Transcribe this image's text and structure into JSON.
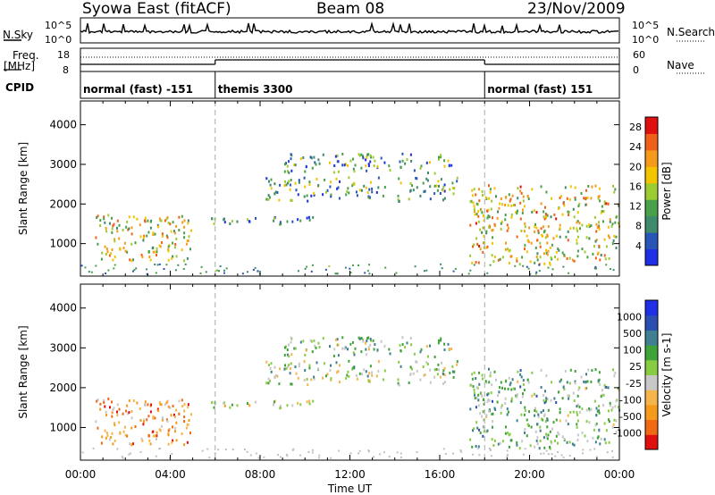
{
  "header": {
    "station": "Syowa East (fitACF)",
    "beam": "Beam 08",
    "date": "23/Nov/2009"
  },
  "strip_labels": {
    "nsky": "N.Sky",
    "nsearch": "N.Search",
    "freq": "Freq.",
    "freq_unit": "[MHz]",
    "nave": "Nave",
    "cpid": "CPID",
    "noise_hi": "10^5",
    "noise_lo": "10^0",
    "freq_hi": "18",
    "freq_lo": "8",
    "nave_hi": "60",
    "nave_lo": "0"
  },
  "cpid_segments": [
    {
      "label": "normal (fast) -151",
      "start_h": 0,
      "end_h": 6
    },
    {
      "label": "themis 3300",
      "start_h": 6,
      "end_h": 18
    },
    {
      "label": "normal (fast) 151",
      "start_h": 18,
      "end_h": 24
    }
  ],
  "colors": {
    "power": [
      "#1f2fe6",
      "#2a55b8",
      "#3f8a6a",
      "#4aa04a",
      "#9ccc2f",
      "#f3c400",
      "#f59a1a",
      "#f0601a",
      "#e01010"
    ],
    "velocity": [
      "#e01010",
      "#ef6a12",
      "#f59a1a",
      "#f6b54a",
      "#c8c8c8",
      "#88cc44",
      "#3fa33a",
      "#3f7f8f",
      "#2a4fb0",
      "#1f2fe6"
    ]
  },
  "chart_data": [
    {
      "type": "heatmap",
      "panel": "power",
      "ylabel": "Slant Range [km]",
      "ylim": [
        180,
        4600
      ],
      "yticks": [
        "1000",
        "2000",
        "3000",
        "4000"
      ],
      "xlim_hours": [
        0,
        24
      ],
      "colorbar_label": "Power [dB]",
      "colorbar_ticks": [
        "4",
        "8",
        "12",
        "16",
        "20",
        "24",
        "28"
      ],
      "colorbar_range": [
        0,
        30
      ],
      "echo_regions": [
        {
          "start_h": 0.6,
          "end_h": 4.9,
          "range_lo": 600,
          "range_hi": 1800,
          "level": 0.55
        },
        {
          "start_h": 5.8,
          "end_h": 10.5,
          "range_lo": 1500,
          "range_hi": 1700,
          "level": 0.25
        },
        {
          "start_h": 8.2,
          "end_h": 16.8,
          "range_lo": 2100,
          "range_hi": 2700,
          "level": 0.35
        },
        {
          "start_h": 9.0,
          "end_h": 16.6,
          "range_lo": 2800,
          "range_hi": 3300,
          "level": 0.3
        },
        {
          "start_h": 17.3,
          "end_h": 24,
          "range_lo": 500,
          "range_hi": 2500,
          "level": 0.6
        }
      ]
    },
    {
      "type": "heatmap",
      "panel": "velocity",
      "ylabel": "Slant Range [km]",
      "ylim": [
        180,
        4600
      ],
      "yticks": [
        "1000",
        "2000",
        "3000",
        "4000"
      ],
      "xlim_hours": [
        0,
        24
      ],
      "xticks": [
        "00:00",
        "04:00",
        "08:00",
        "12:00",
        "16:00",
        "20:00",
        "00:00"
      ],
      "xlabel": "Time UT",
      "colorbar_label": "Velocity [m s-1]",
      "colorbar_ticks": [
        "-1000",
        "-500",
        "-100",
        "-25",
        "25",
        "100",
        "500",
        "1000"
      ],
      "colorbar_range": [
        -1200,
        1200
      ],
      "echo_regions": [
        {
          "start_h": 0.6,
          "end_h": 4.9,
          "range_lo": 600,
          "range_hi": 1800,
          "level": -0.5
        },
        {
          "start_h": 5.8,
          "end_h": 10.5,
          "range_lo": 1500,
          "range_hi": 1700,
          "level": 0.0
        },
        {
          "start_h": 8.2,
          "end_h": 16.8,
          "range_lo": 2100,
          "range_hi": 2700,
          "level": 0.05
        },
        {
          "start_h": 9.0,
          "end_h": 16.6,
          "range_lo": 2800,
          "range_hi": 3300,
          "level": 0.15
        },
        {
          "start_h": 17.3,
          "end_h": 24,
          "range_lo": 500,
          "range_hi": 2500,
          "level": 0.2
        }
      ]
    }
  ]
}
